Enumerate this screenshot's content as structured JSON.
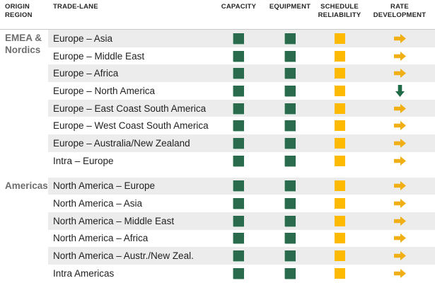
{
  "colors": {
    "green_square": "#2A6B4D",
    "green_square_edge": "#9CC0AB",
    "yellow_square": "#FDBA00",
    "arrow_yellow": "#F0AF14",
    "arrow_green": "#1F6B47",
    "alt_row_bg": "#ECECEC",
    "group_label": "#6E6E6E",
    "header_text": "#262626",
    "row_text": "#1F1F1F",
    "divider": "#C9C9C9"
  },
  "table": {
    "header": {
      "origin_region": "ORIGIN REGION",
      "trade_lane": "TRADE-LANE",
      "capacity": "CAPACITY",
      "equipment": "EQUIPMENT",
      "schedule_reliability": "SCHEDULE RELIABILITY",
      "rate_development": "RATE DEVELOPMENT"
    },
    "groups": [
      {
        "label": "EMEA & Nordics",
        "rows": [
          {
            "lane": "Europe – Asia",
            "capacity": "green",
            "equipment": "green",
            "schedule_reliability": "yellow",
            "rate_development": {
              "direction": "right",
              "color": "yellow"
            }
          },
          {
            "lane": "Europe – Middle East",
            "capacity": "green",
            "equipment": "green",
            "schedule_reliability": "yellow",
            "rate_development": {
              "direction": "right",
              "color": "yellow"
            }
          },
          {
            "lane": "Europe – Africa",
            "capacity": "green",
            "equipment": "green",
            "schedule_reliability": "yellow",
            "rate_development": {
              "direction": "right",
              "color": "yellow"
            }
          },
          {
            "lane": "Europe – North America",
            "capacity": "green",
            "equipment": "green",
            "schedule_reliability": "yellow",
            "rate_development": {
              "direction": "down",
              "color": "green"
            }
          },
          {
            "lane": "Europe – East Coast South America",
            "capacity": "green",
            "equipment": "green",
            "schedule_reliability": "yellow",
            "rate_development": {
              "direction": "right",
              "color": "yellow"
            }
          },
          {
            "lane": "Europe – West Coast South America",
            "capacity": "green",
            "equipment": "green",
            "schedule_reliability": "yellow",
            "rate_development": {
              "direction": "right",
              "color": "yellow"
            }
          },
          {
            "lane": "Europe – Australia/New Zealand",
            "capacity": "green",
            "equipment": "green",
            "schedule_reliability": "yellow",
            "rate_development": {
              "direction": "right",
              "color": "yellow"
            }
          },
          {
            "lane": "Intra – Europe",
            "capacity": "green",
            "equipment": "green",
            "schedule_reliability": "yellow",
            "rate_development": {
              "direction": "right",
              "color": "yellow"
            }
          }
        ]
      },
      {
        "label": "Americas",
        "rows": [
          {
            "lane": "North America – Europe",
            "capacity": "green",
            "equipment": "green",
            "schedule_reliability": "yellow",
            "rate_development": {
              "direction": "right",
              "color": "yellow"
            }
          },
          {
            "lane": "North America – Asia",
            "capacity": "green",
            "equipment": "green",
            "schedule_reliability": "yellow",
            "rate_development": {
              "direction": "right",
              "color": "yellow"
            }
          },
          {
            "lane": "North America – Middle East",
            "capacity": "green",
            "equipment": "green",
            "schedule_reliability": "yellow",
            "rate_development": {
              "direction": "right",
              "color": "yellow"
            }
          },
          {
            "lane": "North America – Africa",
            "capacity": "green",
            "equipment": "green",
            "schedule_reliability": "yellow",
            "rate_development": {
              "direction": "right",
              "color": "yellow"
            }
          },
          {
            "lane": "North America – Austr./New Zeal.",
            "capacity": "green",
            "equipment": "green",
            "schedule_reliability": "yellow",
            "rate_development": {
              "direction": "right",
              "color": "yellow"
            }
          },
          {
            "lane": "Intra Americas",
            "capacity": "green",
            "equipment": "green",
            "schedule_reliability": "yellow",
            "rate_development": {
              "direction": "right",
              "color": "yellow"
            }
          }
        ]
      }
    ]
  }
}
